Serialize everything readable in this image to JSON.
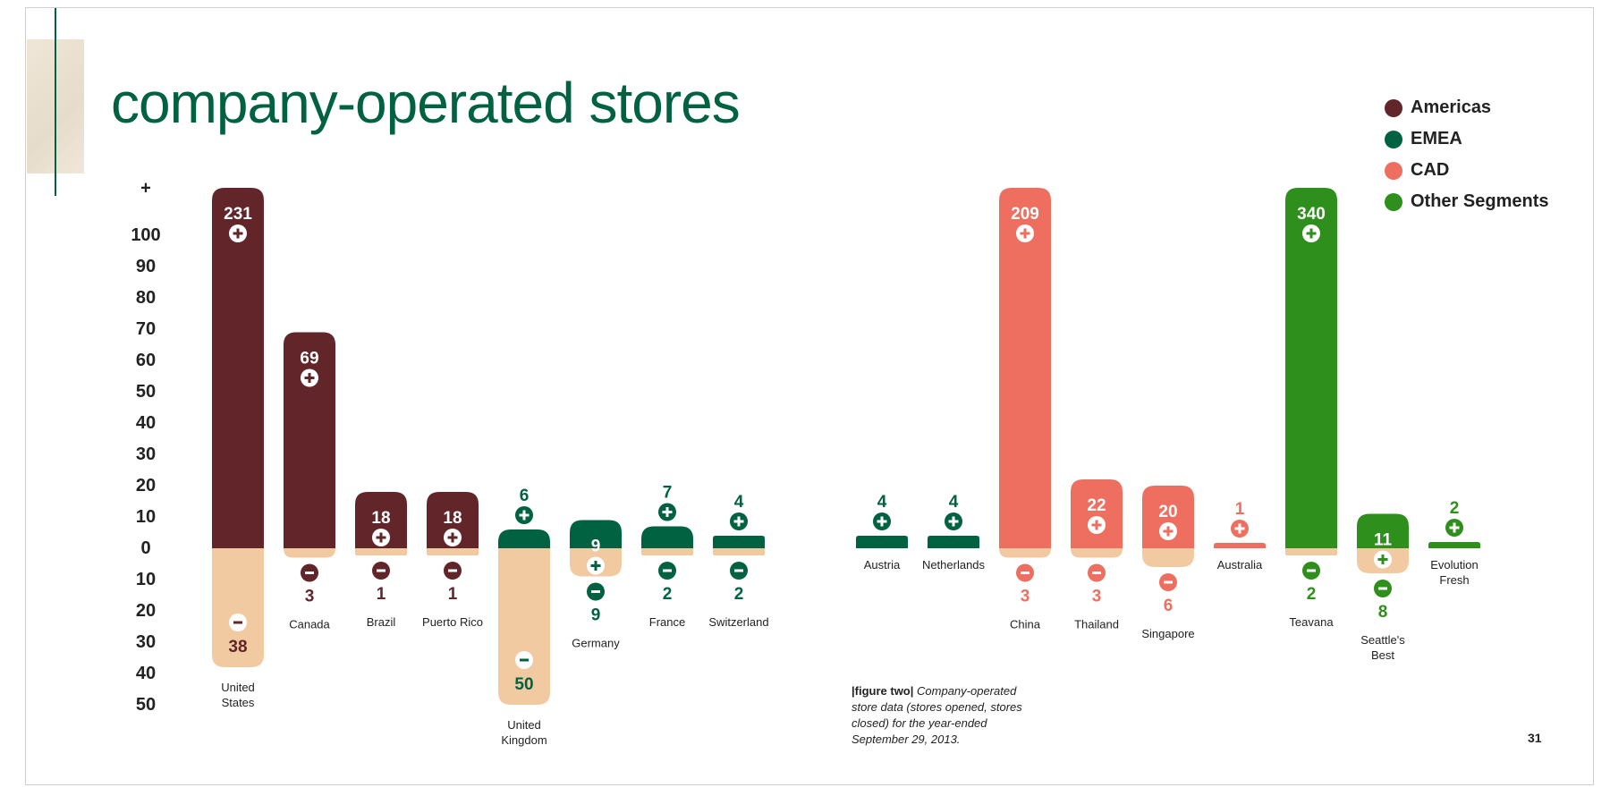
{
  "title": "company-operated stores",
  "page_number": "31",
  "caption": {
    "tag": "|figure two|",
    "text": "Company-operated store data (stores opened, stores closed) for the year-ended September 29, 2013."
  },
  "colors": {
    "Americas": "#62262a",
    "EMEA": "#006241",
    "CAD": "#ee6f5f",
    "Other Segments": "#2f8f1d",
    "closed_fill": "#f2caa2",
    "title": "#006241"
  },
  "legend": [
    "Americas",
    "EMEA",
    "CAD",
    "Other Segments"
  ],
  "chart_data": {
    "type": "bar",
    "title": "company-operated stores",
    "y_axis": {
      "opened_ticks": [
        "+",
        "100",
        "90",
        "80",
        "70",
        "60",
        "50",
        "40",
        "30",
        "20",
        "10",
        "0"
      ],
      "closed_ticks": [
        "10",
        "20",
        "30",
        "40",
        "50"
      ],
      "cap": 110,
      "min": -50
    },
    "series": [
      {
        "name": "Opened",
        "symbol": "+"
      },
      {
        "name": "Closed",
        "symbol": "-"
      }
    ],
    "bars": [
      {
        "label": "United States",
        "segment": "Americas",
        "opened": 231,
        "closed": 38
      },
      {
        "label": "Canada",
        "segment": "Americas",
        "opened": 69,
        "closed": 3
      },
      {
        "label": "Brazil",
        "segment": "Americas",
        "opened": 18,
        "closed": 1
      },
      {
        "label": "Puerto Rico",
        "segment": "Americas",
        "opened": 18,
        "closed": 1
      },
      {
        "label": "United Kingdom",
        "segment": "EMEA",
        "opened": 6,
        "closed": 50
      },
      {
        "label": "Germany",
        "segment": "EMEA",
        "opened": 9,
        "closed": 9
      },
      {
        "label": "France",
        "segment": "EMEA",
        "opened": 7,
        "closed": 2
      },
      {
        "label": "Switzerland",
        "segment": "EMEA",
        "opened": 4,
        "closed": 2
      },
      {
        "label": "Austria",
        "segment": "EMEA",
        "opened": 4,
        "closed": null
      },
      {
        "label": "Netherlands",
        "segment": "EMEA",
        "opened": 4,
        "closed": null
      },
      {
        "label": "China",
        "segment": "CAD",
        "opened": 209,
        "closed": 3
      },
      {
        "label": "Thailand",
        "segment": "CAD",
        "opened": 22,
        "closed": 3
      },
      {
        "label": "Singapore",
        "segment": "CAD",
        "opened": 20,
        "closed": 6
      },
      {
        "label": "Australia",
        "segment": "CAD",
        "opened": 1,
        "closed": null
      },
      {
        "label": "Teavana",
        "segment": "Other Segments",
        "opened": 340,
        "closed": 2
      },
      {
        "label": "Seattle's Best",
        "segment": "Other Segments",
        "opened": 11,
        "closed": 8
      },
      {
        "label": "Evolution Fresh",
        "segment": "Other Segments",
        "opened": 2,
        "closed": null
      }
    ]
  }
}
